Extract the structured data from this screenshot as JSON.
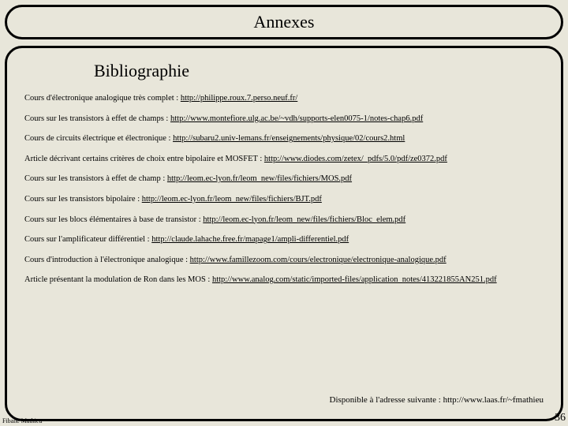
{
  "title": "Annexes",
  "heading": "Bibliographie",
  "entries": [
    {
      "prefix": "Cours d'électronique analogique très complet : ",
      "link": "http://philippe.roux.7.perso.neuf.fr/"
    },
    {
      "prefix": "Cours sur les transistors à effet de champs : ",
      "link": "http://www.montefiore.ulg.ac.be/~vdh/supports-elen0075-1/notes-chap6.pdf"
    },
    {
      "prefix": "Cours de circuits électrique et électronique : ",
      "link": "http://subaru2.univ-lemans.fr/enseignements/physique/02/cours2.html"
    },
    {
      "prefix": "Article décrivant certains critères de choix entre bipolaire et MOSFET : ",
      "link": "http://www.diodes.com/zetex/_pdfs/5.0/pdf/ze0372.pdf"
    },
    {
      "prefix": "Cours sur les transistors à effet de champ : ",
      "link": "http://leom.ec-lyon.fr/leom_new/files/fichiers/MOS.pdf"
    },
    {
      "prefix": "Cours sur les transistors bipolaire : ",
      "link": "http://leom.ec-lyon.fr/leom_new/files/fichiers/BJT.pdf"
    },
    {
      "prefix": "Cours sur les blocs élémentaires à base de transistor : ",
      "link": "http://leom.ec-lyon.fr/leom_new/files/fichiers/Bloc_elem.pdf"
    },
    {
      "prefix": "Cours sur l'amplificateur différentiel : ",
      "link": "http://claude.lahache.free.fr/mapage1/ampli-differentiel.pdf"
    },
    {
      "prefix": "Cours d'introduction à l'électronique analogique : ",
      "link": "http://www.famillezoom.com/cours/electronique/electronique-analogique.pdf"
    },
    {
      "prefix": "Article présentant la modulation de Ron dans les MOS : ",
      "link": "http://www.analog.com/static/imported-files/application_notes/413221855AN251.pdf"
    }
  ],
  "availability": "Disponible à l'adresse suivante : http://www.laas.fr/~fmathieu",
  "footer_name": "Fibane Mathieu",
  "page_num": "36",
  "colors": {
    "background": "#e8e6da",
    "border": "#000000",
    "text": "#000000"
  }
}
